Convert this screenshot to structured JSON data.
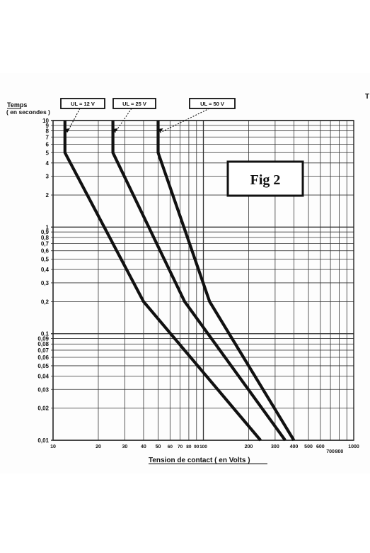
{
  "chart_data": {
    "type": "line",
    "title": "",
    "ylabel_line1": "Temps",
    "ylabel_line2": "( en secondes )",
    "xlabel": "Tension de contact ( en Volts )",
    "xscale": "log",
    "yscale": "log",
    "xlim": [
      10,
      1000
    ],
    "ylim": [
      0.01,
      10
    ],
    "grid": true,
    "fig_label": "Fig 2",
    "y_ticks": [
      {
        "v": 10,
        "label": "10"
      },
      {
        "v": 9,
        "label": "9"
      },
      {
        "v": 8,
        "label": "8"
      },
      {
        "v": 7,
        "label": "7"
      },
      {
        "v": 6,
        "label": "6"
      },
      {
        "v": 5,
        "label": "5"
      },
      {
        "v": 4,
        "label": "4"
      },
      {
        "v": 3,
        "label": "3"
      },
      {
        "v": 2,
        "label": "2"
      },
      {
        "v": 1,
        "label": "1"
      },
      {
        "v": 0.9,
        "label": "0,9"
      },
      {
        "v": 0.8,
        "label": "0,8"
      },
      {
        "v": 0.7,
        "label": "0,7"
      },
      {
        "v": 0.6,
        "label": "0,6"
      },
      {
        "v": 0.5,
        "label": "0,5"
      },
      {
        "v": 0.4,
        "label": "0,4"
      },
      {
        "v": 0.3,
        "label": "0,3"
      },
      {
        "v": 0.2,
        "label": "0,2"
      },
      {
        "v": 0.1,
        "label": "0,1"
      },
      {
        "v": 0.09,
        "label": "0,09"
      },
      {
        "v": 0.08,
        "label": "0,08"
      },
      {
        "v": 0.07,
        "label": "0,07"
      },
      {
        "v": 0.06,
        "label": "0,06"
      },
      {
        "v": 0.05,
        "label": "0,05"
      },
      {
        "v": 0.04,
        "label": "0,04"
      },
      {
        "v": 0.03,
        "label": "0,03"
      },
      {
        "v": 0.02,
        "label": "0,02"
      },
      {
        "v": 0.01,
        "label": "0,01"
      }
    ],
    "x_ticks": [
      {
        "v": 10,
        "label": "10"
      },
      {
        "v": 20,
        "label": "20"
      },
      {
        "v": 30,
        "label": "30"
      },
      {
        "v": 40,
        "label": "40"
      },
      {
        "v": 50,
        "label": "50"
      },
      {
        "v": 60,
        "label": "60"
      },
      {
        "v": 70,
        "label": "70"
      },
      {
        "v": 80,
        "label": "80"
      },
      {
        "v": 90,
        "label": "90"
      },
      {
        "v": 100,
        "label": "100"
      },
      {
        "v": 200,
        "label": "200"
      },
      {
        "v": 300,
        "label": "300"
      },
      {
        "v": 400,
        "label": "400"
      },
      {
        "v": 500,
        "label": "500"
      },
      {
        "v": 600,
        "label": "600"
      },
      {
        "v": 700,
        "label": "700"
      },
      {
        "v": 800,
        "label": "800"
      },
      {
        "v": 1000,
        "label": "1000"
      }
    ],
    "series": [
      {
        "label": "UL = 12 V",
        "points": [
          [
            12,
            10
          ],
          [
            12,
            5
          ],
          [
            40,
            0.2
          ],
          [
            240,
            0.01
          ]
        ]
      },
      {
        "label": "UL = 25 V",
        "points": [
          [
            25,
            10
          ],
          [
            25,
            5
          ],
          [
            75,
            0.2
          ],
          [
            350,
            0.01
          ]
        ]
      },
      {
        "label": "UL = 50 V",
        "points": [
          [
            50,
            10
          ],
          [
            50,
            5
          ],
          [
            110,
            0.2
          ],
          [
            400,
            0.01
          ]
        ]
      }
    ],
    "edge_text": "T"
  }
}
